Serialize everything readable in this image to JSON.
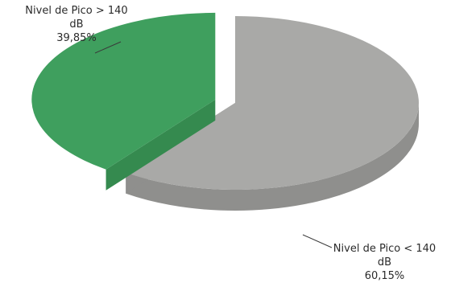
{
  "chart_data": {
    "type": "pie",
    "style": "3d-exploded",
    "title": "",
    "slices": [
      {
        "label_line1": "Nivel de Pico > 140",
        "label_line2": "dB",
        "percent_text": "39,85%",
        "value": 39.85,
        "color": "#3f9f5e",
        "side_color": "#358a4f"
      },
      {
        "label_line1": "Nivel de Pico < 140",
        "label_line2": "dB",
        "percent_text": "60,15%",
        "value": 60.15,
        "color": "#a9a9a7",
        "side_color": "#8f8f8d"
      }
    ],
    "legend": "none"
  }
}
